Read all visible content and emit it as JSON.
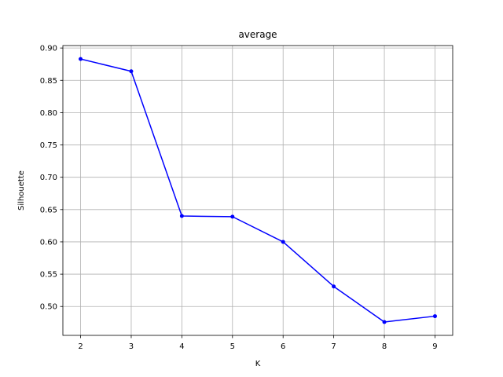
{
  "chart_data": {
    "type": "line",
    "title": "average",
    "xlabel": "K",
    "ylabel": "Silhouette",
    "x": [
      2,
      3,
      4,
      5,
      6,
      7,
      8,
      9
    ],
    "xticks": [
      "2",
      "3",
      "4",
      "5",
      "6",
      "7",
      "8",
      "9"
    ],
    "yticks": [
      "0.50",
      "0.55",
      "0.60",
      "0.65",
      "0.70",
      "0.75",
      "0.80",
      "0.85",
      "0.90"
    ],
    "xlim": [
      1.65,
      9.35
    ],
    "ylim": [
      0.4553,
      0.9038
    ],
    "grid": true,
    "series": [
      {
        "values": [
          0.883,
          0.864,
          0.64,
          0.639,
          0.6,
          0.531,
          0.476,
          0.485
        ],
        "color": "#0000ff",
        "marker": "circle"
      }
    ]
  }
}
